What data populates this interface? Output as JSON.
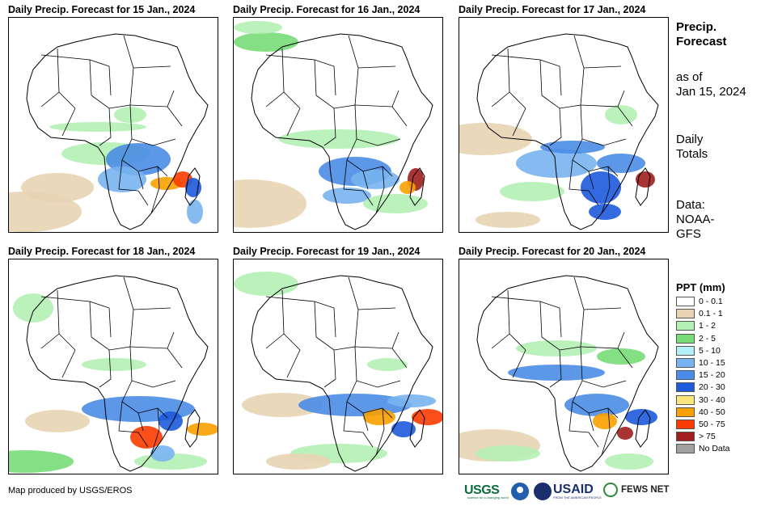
{
  "panels": [
    {
      "title": "Daily Precip. Forecast for 15 Jan., 2024"
    },
    {
      "title": "Daily Precip. Forecast for 16 Jan., 2024"
    },
    {
      "title": "Daily Precip. Forecast for 17 Jan., 2024"
    },
    {
      "title": "Daily Precip. Forecast for 18 Jan., 2024"
    },
    {
      "title": "Daily Precip. Forecast for 19 Jan., 2024"
    },
    {
      "title": "Daily Precip. Forecast for 20 Jan., 2024"
    }
  ],
  "sidebar": {
    "title": "Precip. Forecast",
    "as_of_label": "as of",
    "as_of_date": "Jan 15, 2024",
    "totals_line1": "Daily",
    "totals_line2": "Totals",
    "data_line1": "Data:",
    "data_line2": "NOAA-",
    "data_line3": "GFS"
  },
  "legend": {
    "title": "PPT (mm)",
    "items": [
      {
        "label": "0 - 0.1",
        "color": "#ffffff"
      },
      {
        "label": "0.1 - 1",
        "color": "#e8d4b4"
      },
      {
        "label": "1 - 2",
        "color": "#b4f0b4"
      },
      {
        "label": "2 - 5",
        "color": "#78dc78"
      },
      {
        "label": "5 - 10",
        "color": "#b4f0fa"
      },
      {
        "label": "10 - 15",
        "color": "#78b4f0"
      },
      {
        "label": "15 - 20",
        "color": "#4a8ce6"
      },
      {
        "label": "20 - 30",
        "color": "#1e5adc"
      },
      {
        "label": "30 - 40",
        "color": "#fae67a"
      },
      {
        "label": "40 - 50",
        "color": "#faa000"
      },
      {
        "label": "50 - 75",
        "color": "#fa3c00"
      },
      {
        "label": "> 75",
        "color": "#a01e1e"
      },
      {
        "label": "No Data",
        "color": "#a0a0a0"
      }
    ]
  },
  "footer": {
    "credit": "Map produced by USGS/EROS",
    "logo_usgs": "USGS",
    "logo_usgs_sub": "science for a changing world",
    "logo_usaid": "USAID",
    "logo_usaid_sub": "FROM THE AMERICAN PEOPLE",
    "logo_fews": "FEWS NET"
  }
}
